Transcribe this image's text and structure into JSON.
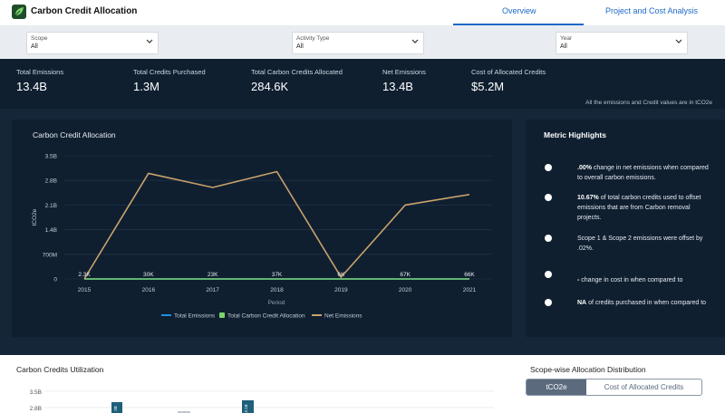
{
  "header": {
    "title": "Carbon Credit Allocation",
    "tabs": [
      {
        "label": "Overview",
        "active": true
      },
      {
        "label": "Project and Cost Analysis",
        "active": false
      }
    ],
    "accent_color": "#1d69c9"
  },
  "filters": [
    {
      "label": "Scope",
      "value": "All"
    },
    {
      "label": "Activity Type",
      "value": "All"
    },
    {
      "label": "Year",
      "value": "All"
    }
  ],
  "kpis": [
    {
      "label": "Total Emissions",
      "value": "13.4B"
    },
    {
      "label": "Total Credits Purchased",
      "value": "1.3M"
    },
    {
      "label": "Total Carbon Credits Allocated",
      "value": "284.6K"
    },
    {
      "label": "Net Emissions",
      "value": "13.4B"
    },
    {
      "label": "Cost of Allocated Credits",
      "value": "$5.2M"
    }
  ],
  "units_note": "All the emissions and Credit values are in tCO2e",
  "chart_data": {
    "type": "line",
    "title": "Carbon Credit Allocation",
    "xlabel": "Period",
    "ylabel": "tCO2e",
    "categories": [
      "2015",
      "2016",
      "2017",
      "2018",
      "2019",
      "2020",
      "2021"
    ],
    "y_ticks": [
      "0",
      "700M",
      "1.4B",
      "2.1B",
      "2.8B",
      "3.5B"
    ],
    "ylim": [
      0,
      3.5
    ],
    "series": [
      {
        "name": "Total Emissions",
        "color": "#1f8fe0",
        "values": [
          0,
          0,
          0,
          0,
          0,
          0,
          0
        ]
      },
      {
        "name": "Total Carbon Credit Allocation",
        "color": "#7bd36b",
        "values": [
          0,
          0,
          0,
          0,
          0,
          0,
          0
        ]
      },
      {
        "name": "Net Emissions",
        "color": "#c9a26b",
        "values": [
          0.0,
          3.0,
          2.6,
          3.05,
          0.05,
          2.1,
          2.4
        ]
      }
    ],
    "data_labels": [
      "2.3K",
      "30K",
      "23K",
      "37K",
      "6K",
      "67K",
      "66K"
    ],
    "legend_position": "bottom"
  },
  "highlights": {
    "title": "Metric Highlights",
    "items": [
      {
        "bold": ".00%",
        "text": " change in net emissions when compared to overall carbon emissions."
      },
      {
        "bold": "10.67%",
        "text": " of total carbon credits used to offset emissions that are from Carbon removal projects."
      },
      {
        "bold": "",
        "text": "Scope 1 & Scope 2 emissions were offset by .02%."
      },
      {
        "bold": "-",
        "text": " change in cost in  when compared to"
      },
      {
        "bold": "NA",
        "text": " of credits purchased in  when compared to"
      }
    ]
  },
  "bottom": {
    "util_title": "Carbon Credits Utilization",
    "util_y_ticks": [
      "3.5B",
      "2.8B"
    ],
    "util_bar_labels": [
      "3B",
      "3.1B"
    ],
    "scope_title": "Scope-wise Allocation Distribution",
    "toggle": [
      "tCO2e",
      "Cost of Allocated Credits"
    ]
  }
}
